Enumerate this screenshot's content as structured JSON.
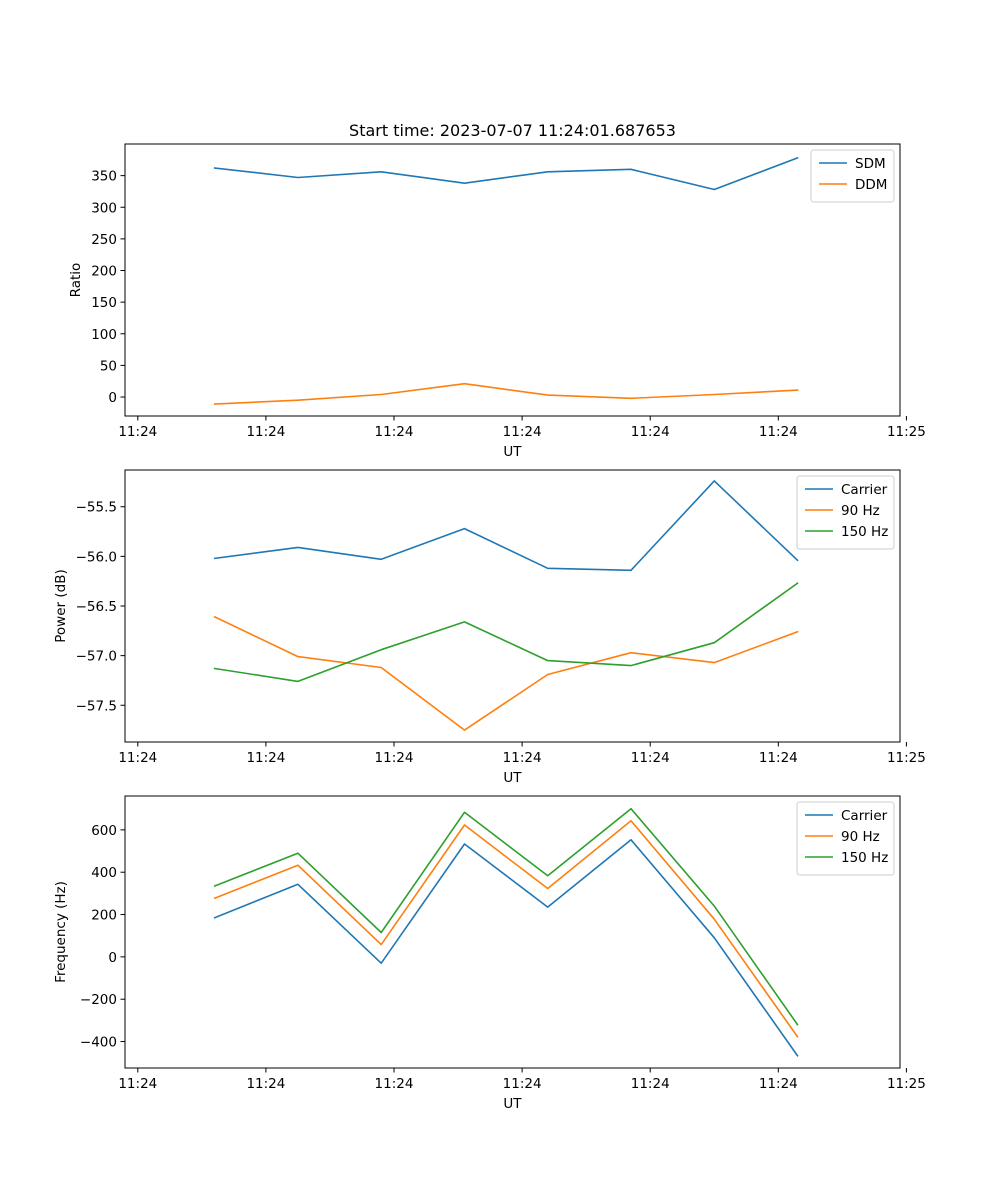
{
  "chart_data": [
    {
      "type": "line",
      "title": "Start time: 2023-07-07 11:24:01.687653",
      "xlabel": "UT",
      "ylabel": "Ratio",
      "x": [
        0.6,
        1.25,
        1.9,
        2.55,
        3.2,
        3.85,
        4.5,
        5.15
      ],
      "xlim": [
        -0.1,
        5.95
      ],
      "x_ticks": [
        0,
        1,
        2,
        3,
        4,
        5,
        6
      ],
      "x_tick_labels": [
        "11:24",
        "11:24",
        "11:24",
        "11:24",
        "11:24",
        "11:24",
        "11:25"
      ],
      "ylim": [
        -30,
        400
      ],
      "y_ticks": [
        0,
        50,
        100,
        150,
        200,
        250,
        300,
        350
      ],
      "y_tick_labels": [
        "0",
        "50",
        "100",
        "150",
        "200",
        "250",
        "300",
        "350"
      ],
      "legend_position": "top-right",
      "series": [
        {
          "name": "SDM",
          "color": "#1f77b4",
          "values": [
            362,
            347,
            356,
            338,
            356,
            360,
            328,
            378
          ]
        },
        {
          "name": "DDM",
          "color": "#ff7f0e",
          "values": [
            -11,
            -5,
            4,
            21,
            3,
            -2,
            4,
            11
          ]
        }
      ]
    },
    {
      "type": "line",
      "title": "",
      "xlabel": "UT",
      "ylabel": "Power (dB)",
      "x": [
        0.6,
        1.25,
        1.9,
        2.55,
        3.2,
        3.85,
        4.5,
        5.15
      ],
      "xlim": [
        -0.1,
        5.95
      ],
      "x_ticks": [
        0,
        1,
        2,
        3,
        4,
        5,
        6
      ],
      "x_tick_labels": [
        "11:24",
        "11:24",
        "11:24",
        "11:24",
        "11:24",
        "11:24",
        "11:25"
      ],
      "ylim": [
        -57.87,
        -55.13
      ],
      "y_ticks": [
        -57.5,
        -57.0,
        -56.5,
        -56.0,
        -55.5
      ],
      "y_tick_labels": [
        "−57.5",
        "−57.0",
        "−56.5",
        "−56.0",
        "−55.5"
      ],
      "legend_position": "top-right",
      "series": [
        {
          "name": "Carrier",
          "color": "#1f77b4",
          "values": [
            -56.02,
            -55.91,
            -56.03,
            -55.72,
            -56.12,
            -56.14,
            -55.24,
            -56.04
          ]
        },
        {
          "name": "90 Hz",
          "color": "#ff7f0e",
          "values": [
            -56.61,
            -57.01,
            -57.12,
            -57.75,
            -57.19,
            -56.97,
            -57.07,
            -56.76
          ]
        },
        {
          "name": "150 Hz",
          "color": "#2ca02c",
          "values": [
            -57.13,
            -57.26,
            -56.94,
            -56.66,
            -57.05,
            -57.1,
            -56.87,
            -56.27
          ]
        }
      ]
    },
    {
      "type": "line",
      "title": "",
      "xlabel": "UT",
      "ylabel": "Frequency (Hz)",
      "x": [
        0.6,
        1.25,
        1.9,
        2.55,
        3.2,
        3.85,
        4.5,
        5.15
      ],
      "xlim": [
        -0.1,
        5.95
      ],
      "x_ticks": [
        0,
        1,
        2,
        3,
        4,
        5,
        6
      ],
      "x_tick_labels": [
        "11:24",
        "11:24",
        "11:24",
        "11:24",
        "11:24",
        "11:24",
        "11:25"
      ],
      "ylim": [
        -525,
        760
      ],
      "y_ticks": [
        -400,
        -200,
        0,
        200,
        400,
        600
      ],
      "y_tick_labels": [
        "−400",
        "−200",
        "0",
        "200",
        "400",
        "600"
      ],
      "legend_position": "top-right",
      "series": [
        {
          "name": "Carrier",
          "color": "#1f77b4",
          "values": [
            185,
            343,
            -30,
            533,
            235,
            553,
            90,
            -467
          ]
        },
        {
          "name": "90 Hz",
          "color": "#ff7f0e",
          "values": [
            277,
            433,
            58,
            623,
            323,
            643,
            178,
            -377
          ]
        },
        {
          "name": "150 Hz",
          "color": "#2ca02c",
          "values": [
            335,
            490,
            115,
            683,
            383,
            700,
            240,
            -320
          ]
        }
      ]
    }
  ]
}
